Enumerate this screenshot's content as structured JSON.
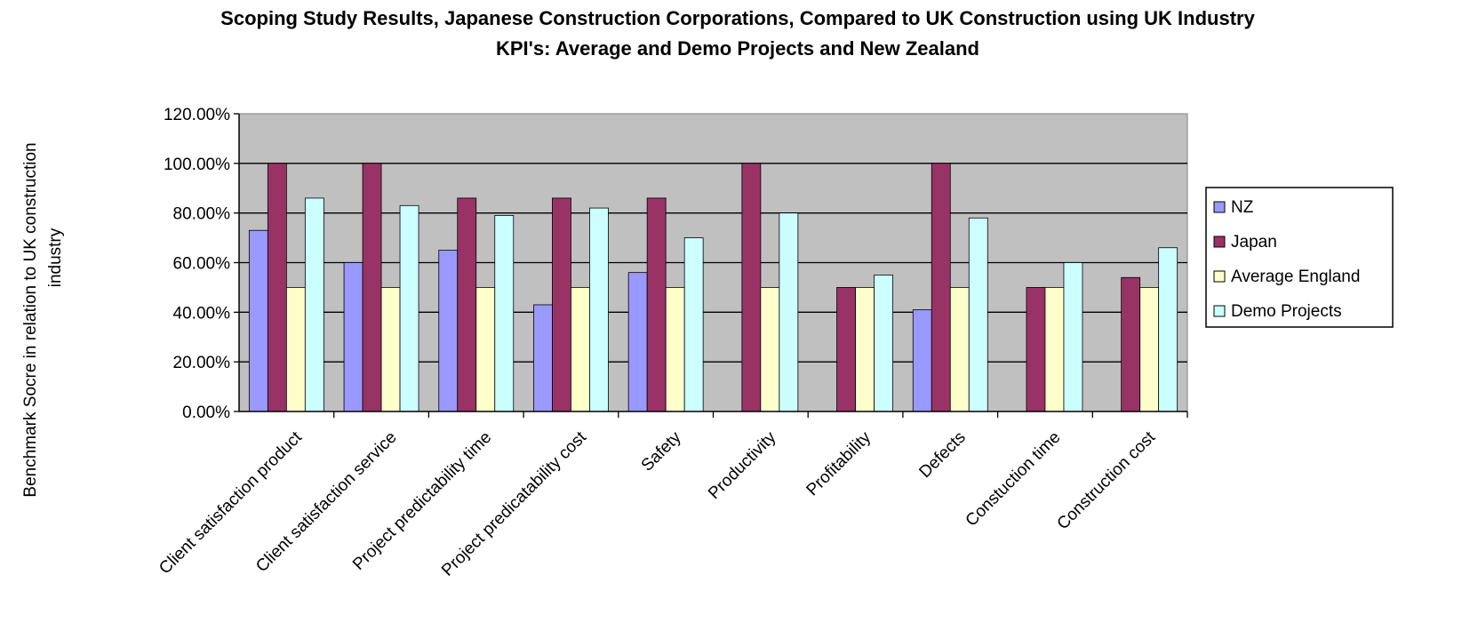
{
  "chart_data": {
    "type": "bar",
    "title": "Scoping Study Results, Japanese Construction Corporations, Compared to UK Construction using UK Industry KPI's: Average and Demo Projects and New Zealand",
    "title_lines": [
      "Scoping Study Results, Japanese Construction Corporations, Compared to UK Construction using UK Industry",
      "KPI's: Average and Demo Projects and New Zealand"
    ],
    "xlabel": "",
    "ylabel": "Benchmark Socre in relation to UK construction industry",
    "ylabel_lines": [
      "Benchmark Socre in relation to UK construction",
      "industry"
    ],
    "ylim": [
      0,
      1.2
    ],
    "yticks": [
      0,
      0.2,
      0.4,
      0.6,
      0.8,
      1.0,
      1.2
    ],
    "ytick_labels": [
      "0.00%",
      "20.00%",
      "40.00%",
      "60.00%",
      "80.00%",
      "100.00%",
      "120.00%"
    ],
    "grid": true,
    "legend_position": "right",
    "plot_background": "#c0c0c0",
    "categories": [
      "Client satisfaction product",
      "Client satisfaction service",
      "Project predictability time",
      "Project predicatability cost",
      "Safety",
      "Productivity",
      "Profitability",
      "Defects",
      "Constuction time",
      "Construction cost"
    ],
    "series": [
      {
        "name": "NZ",
        "color": "#9999ff",
        "values": [
          0.73,
          0.6,
          0.65,
          0.43,
          0.56,
          0,
          0,
          0.41,
          0,
          0
        ]
      },
      {
        "name": "Japan",
        "color": "#993366",
        "values": [
          1.0,
          1.0,
          0.86,
          0.86,
          0.86,
          1.0,
          0.5,
          1.0,
          0.5,
          0.54
        ]
      },
      {
        "name": "Average England",
        "color": "#ffffcc",
        "values": [
          0.5,
          0.5,
          0.5,
          0.5,
          0.5,
          0.5,
          0.5,
          0.5,
          0.5,
          0.5
        ]
      },
      {
        "name": "Demo Projects",
        "color": "#ccffff",
        "values": [
          0.86,
          0.83,
          0.79,
          0.82,
          0.7,
          0.8,
          0.55,
          0.78,
          0.6,
          0.66
        ]
      }
    ]
  }
}
